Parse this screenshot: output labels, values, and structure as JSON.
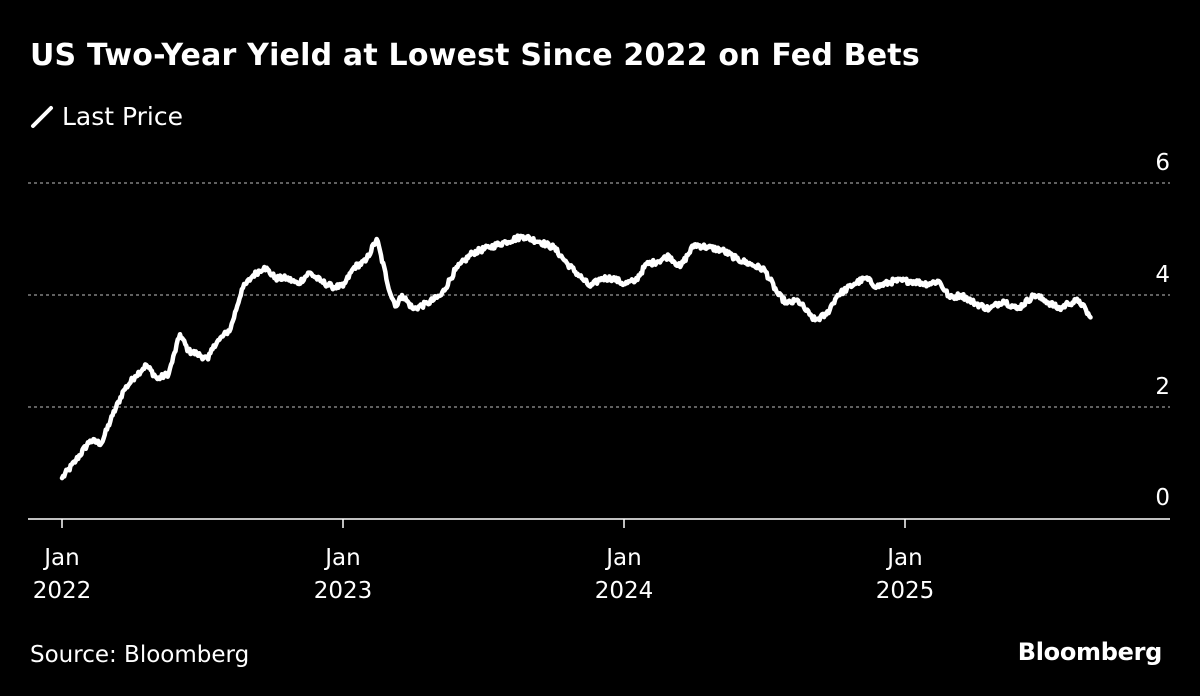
{
  "title": "US Two-Year Yield at Lowest Since 2022 on Fed Bets",
  "legend": {
    "label": "Last Price"
  },
  "source": "Source: Bloomberg",
  "brand": "Bloomberg",
  "colors": {
    "background": "#000000",
    "line": "#ffffff",
    "grid": "#9a9a9a",
    "text": "#ffffff"
  },
  "chart_data": {
    "type": "line",
    "title": "US Two-Year Yield at Lowest Since 2022 on Fed Bets",
    "xlabel": "",
    "ylabel": "",
    "ylim": [
      0,
      6
    ],
    "xlim": [
      2022.0,
      2025.9
    ],
    "y_ticks": [
      "0",
      "2",
      "4",
      "6"
    ],
    "x_ticks": [
      {
        "x": 2022.0,
        "line1": "Jan",
        "line2": "2022"
      },
      {
        "x": 2023.0,
        "line1": "Jan",
        "line2": "2023"
      },
      {
        "x": 2024.0,
        "line1": "Jan",
        "line2": "2024"
      },
      {
        "x": 2025.0,
        "line1": "Jan",
        "line2": "2025"
      }
    ],
    "grid": true,
    "series": [
      {
        "name": "Last Price",
        "x": [
          2022.0,
          2022.05,
          2022.1,
          2022.14,
          2022.18,
          2022.22,
          2022.26,
          2022.3,
          2022.34,
          2022.38,
          2022.42,
          2022.45,
          2022.48,
          2022.52,
          2022.54,
          2022.56,
          2022.6,
          2022.64,
          2022.68,
          2022.72,
          2022.76,
          2022.8,
          2022.84,
          2022.88,
          2022.92,
          2022.96,
          2023.0,
          2023.04,
          2023.08,
          2023.12,
          2023.17,
          2023.19,
          2023.21,
          2023.25,
          2023.3,
          2023.35,
          2023.4,
          2023.46,
          2023.52,
          2023.58,
          2023.64,
          2023.7,
          2023.75,
          2023.8,
          2023.85,
          2023.88,
          2023.92,
          2023.96,
          2024.0,
          2024.04,
          2024.08,
          2024.12,
          2024.16,
          2024.2,
          2024.25,
          2024.3,
          2024.35,
          2024.4,
          2024.45,
          2024.5,
          2024.55,
          2024.58,
          2024.62,
          2024.66,
          2024.68,
          2024.72,
          2024.76,
          2024.82,
          2024.86,
          2024.9,
          2024.96,
          2025.02,
          2025.08,
          2025.12,
          2025.16,
          2025.2,
          2025.25,
          2025.3,
          2025.35,
          2025.4,
          2025.46,
          2025.5,
          2025.55,
          2025.58,
          2025.62,
          2025.66
        ],
        "values": [
          0.73,
          1.05,
          1.4,
          1.35,
          1.85,
          2.3,
          2.55,
          2.75,
          2.5,
          2.6,
          3.3,
          3.0,
          2.95,
          2.85,
          3.1,
          3.2,
          3.4,
          4.1,
          4.35,
          4.5,
          4.3,
          4.3,
          4.2,
          4.4,
          4.25,
          4.15,
          4.15,
          4.5,
          4.6,
          5.0,
          4.0,
          3.8,
          4.0,
          3.75,
          3.85,
          4.0,
          4.45,
          4.75,
          4.85,
          4.95,
          5.05,
          4.95,
          4.85,
          4.55,
          4.3,
          4.15,
          4.3,
          4.3,
          4.2,
          4.25,
          4.55,
          4.6,
          4.7,
          4.5,
          4.9,
          4.85,
          4.8,
          4.65,
          4.55,
          4.45,
          4.0,
          3.85,
          3.9,
          3.65,
          3.55,
          3.65,
          4.0,
          4.2,
          4.3,
          4.15,
          4.25,
          4.25,
          4.2,
          4.25,
          3.95,
          4.0,
          3.85,
          3.75,
          3.9,
          3.75,
          4.0,
          3.9,
          3.75,
          3.85,
          3.9,
          3.6
        ],
        "noise_amplitude": 0.05
      }
    ]
  }
}
